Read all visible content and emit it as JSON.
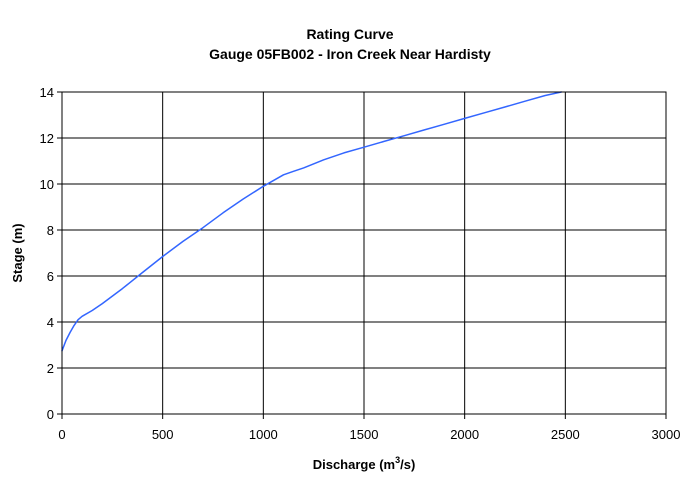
{
  "chart_data": {
    "type": "line",
    "title": "Rating Curve",
    "subtitle": "Gauge 05FB002 - Iron Creek Near Hardisty",
    "xlabel": "Discharge (m³/s)",
    "xlabel_parts": {
      "pre": "Discharge (m",
      "sup": "3",
      "post": "/s)"
    },
    "ylabel": "Stage (m)",
    "xlim": [
      0,
      3000
    ],
    "ylim": [
      0,
      14
    ],
    "xticks": [
      0,
      500,
      1000,
      1500,
      2000,
      2500,
      3000
    ],
    "yticks": [
      0,
      2,
      4,
      6,
      8,
      10,
      12,
      14
    ],
    "grid": true,
    "legend": "none",
    "series": [
      {
        "color": "#3366ff",
        "x": [
          0,
          20,
          40,
          60,
          80,
          100,
          150,
          200,
          300,
          400,
          500,
          600,
          700,
          800,
          900,
          1000,
          1100,
          1150,
          1200,
          1300,
          1400,
          1500,
          1600,
          1700,
          1800,
          1900,
          2000,
          2100,
          2200,
          2300,
          2400,
          2480
        ],
        "y": [
          2.75,
          3.2,
          3.55,
          3.85,
          4.1,
          4.25,
          4.5,
          4.8,
          5.45,
          6.15,
          6.85,
          7.5,
          8.1,
          8.75,
          9.35,
          9.9,
          10.4,
          10.55,
          10.7,
          11.05,
          11.35,
          11.6,
          11.85,
          12.1,
          12.35,
          12.6,
          12.85,
          13.1,
          13.35,
          13.6,
          13.85,
          14.0
        ]
      }
    ]
  }
}
